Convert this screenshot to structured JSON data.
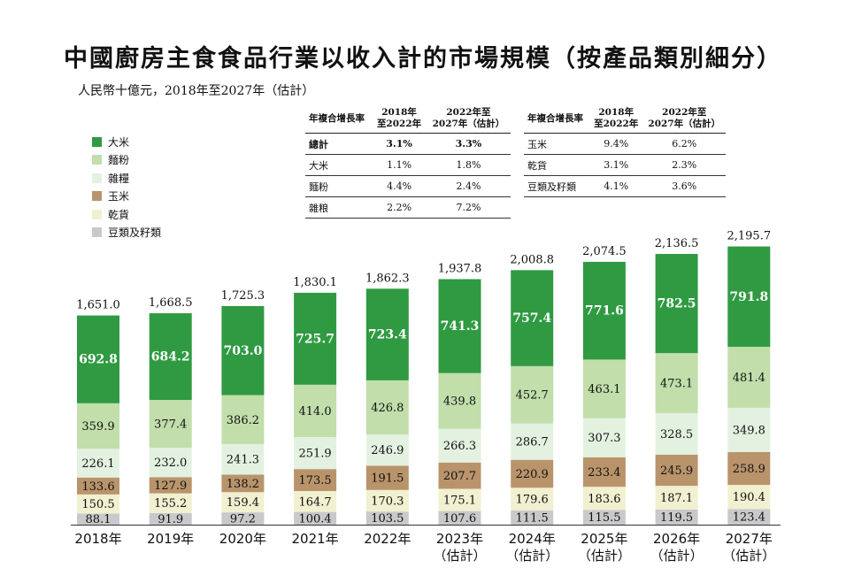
{
  "title": "中國廚房主食食品行業以收入計的市場規模（按產品類別細分）",
  "subtitle": "人民幣十億元，2018年至2027年（估計）",
  "cagr_tables": [
    {
      "headers": [
        "年複合增長率",
        "2018年\n至2022年",
        "2022年至\n2027年（估計）"
      ],
      "rows": [
        {
          "label": "總計",
          "a": "3.1%",
          "b": "3.3%",
          "bold": true
        },
        {
          "label": "大米",
          "a": "1.1%",
          "b": "1.8%"
        },
        {
          "label": "麵粉",
          "a": "4.4%",
          "b": "2.4%"
        },
        {
          "label": "雜粮",
          "a": "2.2%",
          "b": "7.2%"
        }
      ]
    },
    {
      "headers": [
        "年複合增長率",
        "2018年\n至2022年",
        "2022年至\n2027年（估計）"
      ],
      "rows": [
        {
          "label": "玉米",
          "a": "9.4%",
          "b": "6.2%"
        },
        {
          "label": "乾貨",
          "a": "3.1%",
          "b": "2.3%"
        },
        {
          "label": "豆類及籽類",
          "a": "4.1%",
          "b": "3.6%"
        }
      ]
    }
  ],
  "chart_data": {
    "type": "bar",
    "stacked": true,
    "categories": [
      "2018年",
      "2019年",
      "2020年",
      "2021年",
      "2022年",
      "2023年\n（估計）",
      "2024年\n（估計）",
      "2025年\n（估計）",
      "2026年\n（估計）",
      "2027年\n（估計）"
    ],
    "series": [
      {
        "name": "豆類及籽類",
        "color": "#c9c9cb",
        "values": [
          88.1,
          91.9,
          97.2,
          100.4,
          103.5,
          107.6,
          111.5,
          115.5,
          119.5,
          123.4
        ]
      },
      {
        "name": "乾貨",
        "color": "#f1f0d0",
        "values": [
          150.5,
          155.2,
          159.4,
          164.7,
          170.3,
          175.1,
          179.6,
          183.6,
          187.1,
          190.4
        ]
      },
      {
        "name": "玉米",
        "color": "#b9946b",
        "values": [
          133.6,
          127.9,
          138.2,
          173.5,
          191.5,
          207.7,
          220.9,
          233.4,
          245.9,
          258.9
        ]
      },
      {
        "name": "雜糧",
        "color": "#e3f2e0",
        "values": [
          226.1,
          232.0,
          241.3,
          251.9,
          246.9,
          266.3,
          286.7,
          307.3,
          328.5,
          349.8
        ]
      },
      {
        "name": "麵粉",
        "color": "#c1deab",
        "values": [
          359.9,
          377.4,
          386.2,
          414.0,
          426.8,
          439.8,
          452.7,
          463.1,
          473.1,
          481.4
        ]
      },
      {
        "name": "大米",
        "color": "#2f9a42",
        "values": [
          692.8,
          684.2,
          703.0,
          725.7,
          723.4,
          741.3,
          757.4,
          771.6,
          782.5,
          791.8
        ]
      }
    ],
    "totals": [
      "1,651.0",
      "1,668.5",
      "1,725.3",
      "1,830.1",
      "1,862.3",
      "1,937.8",
      "2,008.8",
      "2,074.5",
      "2,136.5",
      "2,195.7"
    ],
    "legend": [
      "大米",
      "麵粉",
      "雜糧",
      "玉米",
      "乾貨",
      "豆類及籽類"
    ],
    "legend_colors": [
      "#2f9a42",
      "#c1deab",
      "#e3f2e0",
      "#b9946b",
      "#f1f0d0",
      "#c9c9cb"
    ],
    "legend_position": "top-left",
    "grid": false
  }
}
